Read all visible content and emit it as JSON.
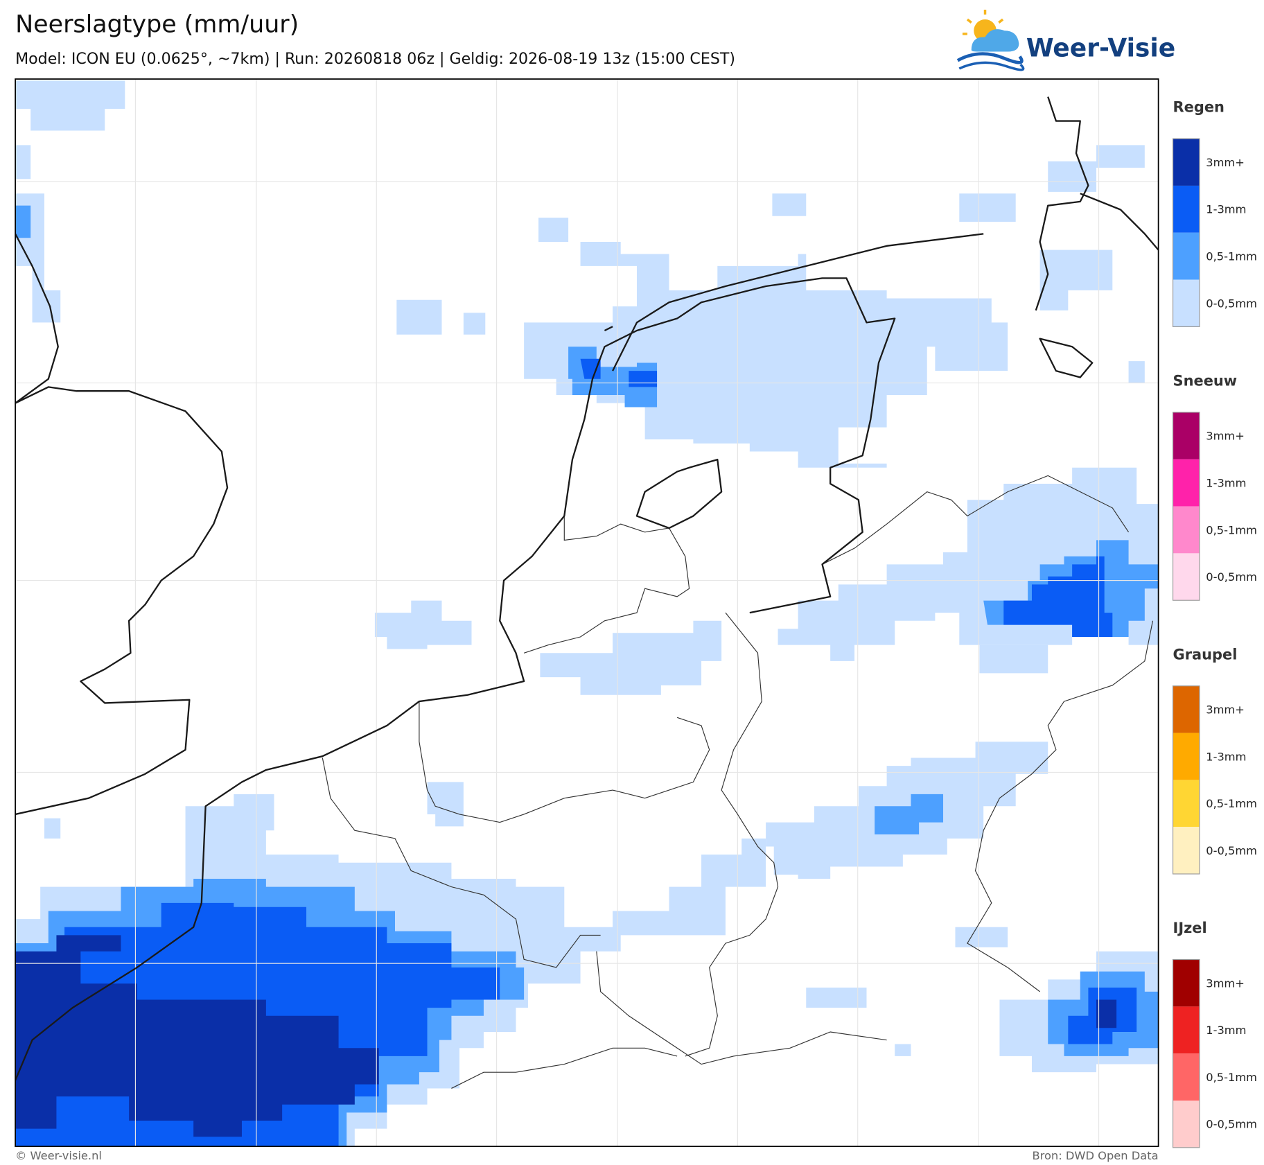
{
  "header": {
    "title": "Neerslagtype (mm/uur)",
    "subtitle": "Model: ICON EU (0.0625°, ~7km)  |  Run: 20260818 06z  |  Geldig: 2026-08-19 13z (15:00 CEST)",
    "logo": "Weer-Visie"
  },
  "legend": [
    {
      "title": "Regen",
      "items": [
        {
          "label": "3mm+",
          "color": "#0a2fa8"
        },
        {
          "label": "1-3mm",
          "color": "#0a5cf5"
        },
        {
          "label": "0,5-1mm",
          "color": "#4da0ff"
        },
        {
          "label": "0-0,5mm",
          "color": "#c8e0ff"
        }
      ]
    },
    {
      "title": "Sneeuw",
      "items": [
        {
          "label": "3mm+",
          "color": "#aa0066"
        },
        {
          "label": "1-3mm",
          "color": "#ff22aa"
        },
        {
          "label": "0,5-1mm",
          "color": "#ff88cc"
        },
        {
          "label": "0-0,5mm",
          "color": "#ffd8ec"
        }
      ]
    },
    {
      "title": "Graupel",
      "items": [
        {
          "label": "3mm+",
          "color": "#dd6600"
        },
        {
          "label": "1-3mm",
          "color": "#ffaa00"
        },
        {
          "label": "0,5-1mm",
          "color": "#ffd633"
        },
        {
          "label": "0-0,5mm",
          "color": "#fff0c0"
        }
      ]
    },
    {
      "title": "IJzel",
      "items": [
        {
          "label": "3mm+",
          "color": "#a00000"
        },
        {
          "label": "1-3mm",
          "color": "#ee2222"
        },
        {
          "label": "0,5-1mm",
          "color": "#ff6666"
        },
        {
          "label": "0-0,5mm",
          "color": "#ffcccc"
        }
      ]
    }
  ],
  "footer": {
    "credit": "© Weer-visie.nl",
    "source": "Bron: DWD Open Data"
  }
}
